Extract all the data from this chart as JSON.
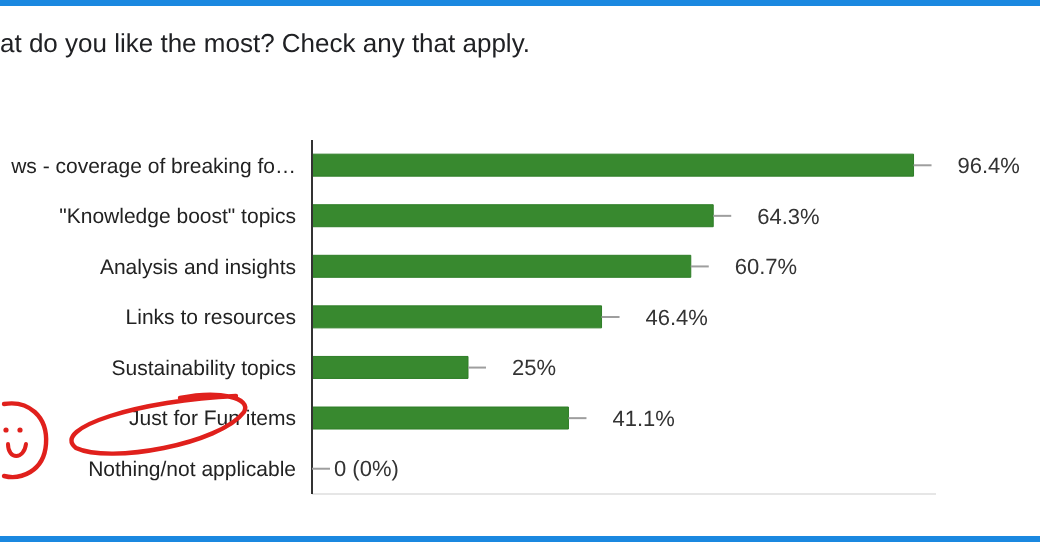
{
  "chart_data": {
    "type": "bar",
    "orientation": "horizontal",
    "title": "at do you like the most? Check any that apply.",
    "categories": [
      "ws - coverage of breaking fo…",
      "\"Knowledge boost\" topics",
      "Analysis and insights",
      "Links to resources",
      "Sustainability topics",
      "Just for Fun items",
      "Nothing/not applicable"
    ],
    "values": [
      96.4,
      64.3,
      60.7,
      46.4,
      25,
      41.1,
      0
    ],
    "value_labels": [
      "96.4%",
      "64.3%",
      "60.7%",
      "46.4%",
      "25%",
      "41.1%",
      "0 (0%)"
    ],
    "color": "#38892f",
    "xlim": [
      0,
      100
    ],
    "tick_labels": "y"
  }
}
